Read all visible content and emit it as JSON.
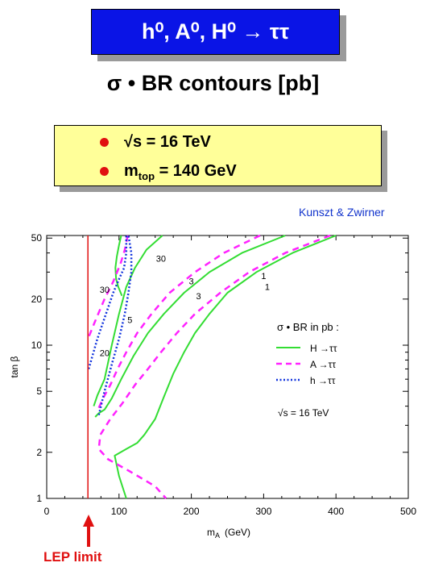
{
  "header": {
    "banner_title": "h⁰, A⁰, H⁰ → ττ",
    "subtitle": "σ • BR  contours  [pb]"
  },
  "info": {
    "energy": "√s = 16 TeV",
    "mtop": "m",
    "mtop_sub": "top",
    "mtop_value": " = 140 GeV"
  },
  "authors": "Kunszt & Zwirner",
  "lep_label": "LEP limit",
  "colors": {
    "banner_bg": "#0a14e6",
    "info_bg": "#ffff99",
    "bullet": "#e01010",
    "authors_text": "#1133cc",
    "H_curve": "#33dd33",
    "A_curve": "#ff22ff",
    "h_curve": "#1133dd",
    "lep_line": "#e01010"
  },
  "chart_data": {
    "type": "line",
    "xlabel": "m",
    "xlabel_sub": "A",
    "xlabel_unit": "(GeV)",
    "ylabel": "tan β",
    "xlim": [
      0,
      500
    ],
    "ylim": [
      1,
      52
    ],
    "y_scale": "log",
    "x_ticks": [
      0,
      100,
      200,
      300,
      400,
      500
    ],
    "y_ticks": [
      1,
      2,
      5,
      10,
      20,
      50
    ],
    "lep_limit_x": 57,
    "legend": {
      "title": "σ • BR in pb :",
      "entries": [
        {
          "label": "H →ττ",
          "series": "H"
        },
        {
          "label": "A →ττ",
          "series": "A"
        },
        {
          "label": "h →ττ",
          "series": "h"
        }
      ],
      "note": "√s = 16 TeV",
      "position": "right-middle"
    },
    "series": [
      {
        "name": "H →ττ",
        "style": "solid",
        "contour": "30",
        "points": [
          [
            103,
            52
          ],
          [
            100,
            45
          ],
          [
            97,
            38
          ],
          [
            95,
            32
          ],
          [
            96,
            27
          ],
          [
            99,
            24
          ],
          [
            104,
            21
          ]
        ]
      },
      {
        "name": "H →ττ",
        "style": "solid",
        "contour": "30",
        "points": [
          [
            160,
            52
          ],
          [
            138,
            42
          ],
          [
            122,
            32
          ],
          [
            110,
            24
          ],
          [
            100,
            16
          ],
          [
            90,
            10
          ],
          [
            80,
            6
          ],
          [
            70,
            4.7
          ],
          [
            65,
            4
          ]
        ]
      },
      {
        "name": "H →ττ",
        "style": "solid",
        "contour": "3",
        "points": [
          [
            330,
            52
          ],
          [
            270,
            40
          ],
          [
            225,
            30
          ],
          [
            190,
            22
          ],
          [
            162,
            16
          ],
          [
            140,
            12
          ],
          [
            120,
            8.5
          ],
          [
            103,
            6
          ],
          [
            90,
            4.5
          ],
          [
            80,
            3.8
          ],
          [
            72,
            3.6
          ],
          [
            67,
            3.4
          ]
        ]
      },
      {
        "name": "H →ττ",
        "style": "solid",
        "contour": "1",
        "points": [
          [
            400,
            52
          ],
          [
            340,
            40
          ],
          [
            290,
            30
          ],
          [
            250,
            22
          ],
          [
            225,
            16
          ],
          [
            205,
            12
          ],
          [
            190,
            9
          ],
          [
            175,
            6.5
          ],
          [
            162,
            4.6
          ],
          [
            150,
            3.3
          ],
          [
            135,
            2.6
          ],
          [
            125,
            2.3
          ],
          [
            110,
            2.1
          ],
          [
            94,
            1.9
          ],
          [
            100,
            1.4
          ],
          [
            110,
            1.0
          ]
        ]
      },
      {
        "name": "A →ττ",
        "style": "dashed",
        "contour": "30",
        "points": [
          [
            112,
            52
          ],
          [
            108,
            42
          ],
          [
            102,
            34
          ],
          [
            92,
            26
          ],
          [
            80,
            20
          ],
          [
            66,
            14
          ],
          [
            57,
            11
          ]
        ]
      },
      {
        "name": "A →ττ",
        "style": "dashed",
        "contour": "3",
        "points": [
          [
            295,
            52
          ],
          [
            245,
            40
          ],
          [
            205,
            30
          ],
          [
            170,
            22
          ],
          [
            145,
            16
          ],
          [
            125,
            12
          ],
          [
            110,
            9
          ],
          [
            98,
            7
          ],
          [
            88,
            5.5
          ],
          [
            78,
            4.5
          ],
          [
            72,
            3.9
          ]
        ]
      },
      {
        "name": "A →ττ",
        "style": "dashed",
        "contour": "1",
        "points": [
          [
            392,
            52
          ],
          [
            330,
            40
          ],
          [
            280,
            30
          ],
          [
            240,
            22
          ],
          [
            205,
            16
          ],
          [
            180,
            12
          ],
          [
            158,
            9
          ],
          [
            140,
            7
          ],
          [
            122,
            5.5
          ],
          [
            105,
            4.2
          ],
          [
            88,
            3.3
          ],
          [
            74,
            2.6
          ],
          [
            72,
            2.1
          ],
          [
            85,
            1.8
          ],
          [
            115,
            1.5
          ],
          [
            150,
            1.2
          ],
          [
            165,
            1.0
          ]
        ]
      },
      {
        "name": "h →ττ",
        "style": "dotted",
        "contour": "20",
        "points": [
          [
            58,
            7
          ],
          [
            70,
            11
          ],
          [
            82,
            16
          ],
          [
            92,
            22
          ],
          [
            100,
            27
          ],
          [
            107,
            32
          ],
          [
            110,
            40
          ],
          [
            110,
            52
          ]
        ]
      },
      {
        "name": "h →ττ",
        "style": "dotted",
        "contour": "5",
        "points": [
          [
            72,
            3.5
          ],
          [
            80,
            5
          ],
          [
            90,
            7.5
          ],
          [
            100,
            11
          ],
          [
            108,
            16
          ],
          [
            113,
            22
          ],
          [
            117,
            30
          ],
          [
            117,
            40
          ],
          [
            113,
            52
          ]
        ]
      }
    ],
    "contour_labels": [
      {
        "text": "30",
        "x": 158,
        "y": 35
      },
      {
        "text": "30",
        "x": 80,
        "y": 22
      },
      {
        "text": "20",
        "x": 80,
        "y": 8.5
      },
      {
        "text": "5",
        "x": 115,
        "y": 14
      },
      {
        "text": "3",
        "x": 200,
        "y": 25
      },
      {
        "text": "3",
        "x": 210,
        "y": 20
      },
      {
        "text": "1",
        "x": 300,
        "y": 27
      },
      {
        "text": "1",
        "x": 305,
        "y": 23
      }
    ]
  }
}
